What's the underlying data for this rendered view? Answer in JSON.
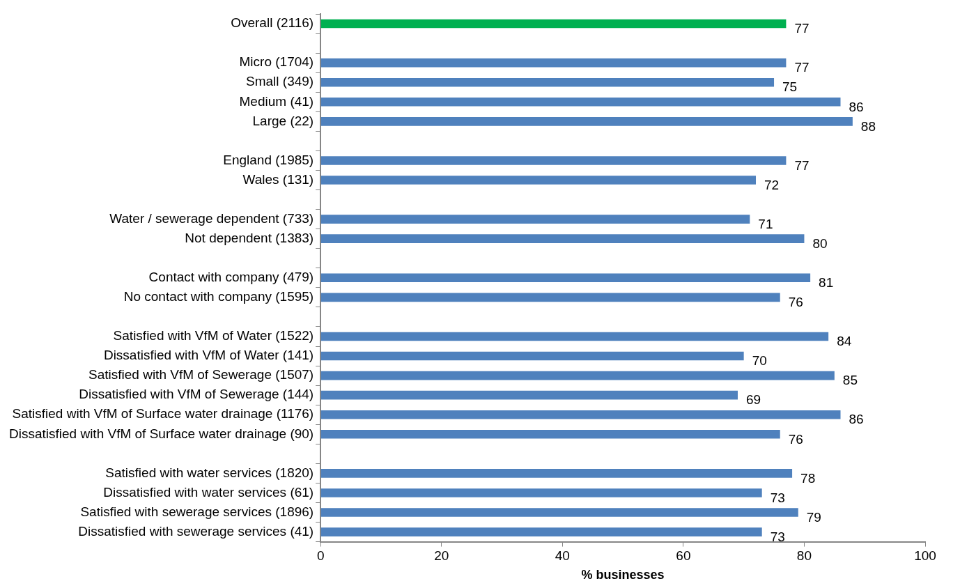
{
  "chart_data": {
    "type": "bar",
    "orientation": "horizontal",
    "xlabel": "% businesses",
    "categories": [
      "Overall (2116)",
      null,
      "Micro (1704)",
      "Small (349)",
      "Medium (41)",
      "Large (22)",
      null,
      "England (1985)",
      "Wales (131)",
      null,
      "Water / sewerage dependent (733)",
      "Not dependent (1383)",
      null,
      "Contact with company (479)",
      "No contact with company (1595)",
      null,
      "Satisfied with VfM of Water (1522)",
      "Dissatisfied with VfM of Water (141)",
      "Satisfied with VfM of Sewerage (1507)",
      "Dissatisfied with VfM of Sewerage (144)",
      "Satisfied with VfM of Surface water drainage (1176)",
      "Dissatisfied with VfM of Surface water drainage (90)",
      null,
      "Satisfied with water services (1820)",
      "Dissatisfied with water services (61)",
      "Satisfied with sewerage services (1896)",
      "Dissatisfied with sewerage services (41)"
    ],
    "values": [
      77,
      null,
      77,
      75,
      86,
      88,
      null,
      77,
      72,
      null,
      71,
      80,
      null,
      81,
      76,
      null,
      84,
      70,
      85,
      69,
      86,
      76,
      null,
      78,
      73,
      79,
      73
    ],
    "colors": [
      "#00b050",
      "#4f81bd",
      "#4f81bd",
      "#4f81bd",
      "#4f81bd",
      "#4f81bd",
      "#4f81bd",
      "#4f81bd",
      "#4f81bd",
      "#4f81bd",
      "#4f81bd",
      "#4f81bd",
      "#4f81bd",
      "#4f81bd",
      "#4f81bd",
      "#4f81bd",
      "#4f81bd",
      "#4f81bd",
      "#4f81bd",
      "#4f81bd",
      "#4f81bd",
      "#4f81bd",
      "#4f81bd",
      "#4f81bd",
      "#4f81bd",
      "#4f81bd",
      "#4f81bd"
    ],
    "xlim": [
      0,
      100
    ],
    "xticks": [
      0,
      20,
      40,
      60,
      80,
      100
    ],
    "data_labels": true,
    "grid": false,
    "legend": false
  }
}
